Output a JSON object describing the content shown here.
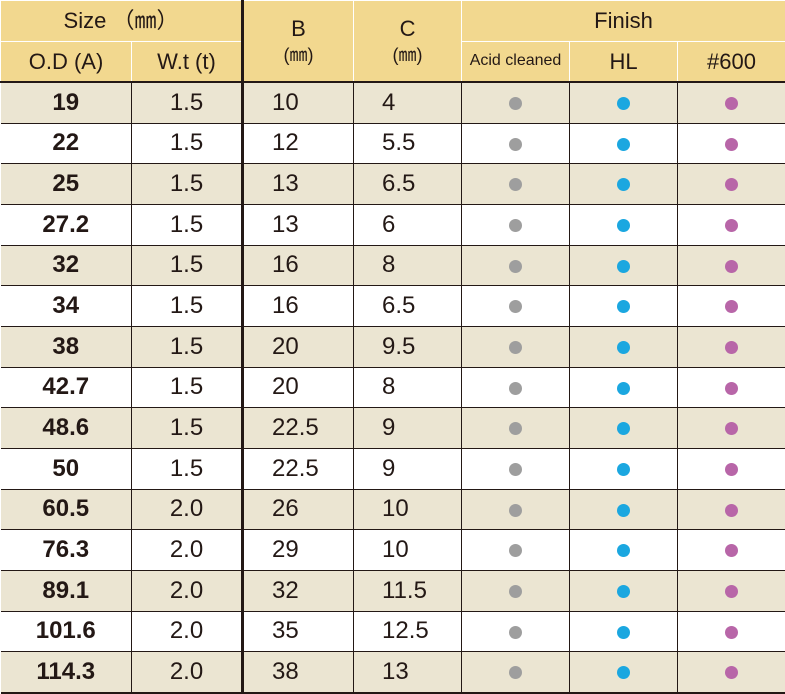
{
  "header": {
    "size_label": "Size （㎜）",
    "od_label": "O.D (A)",
    "wt_label": "W.t (t)",
    "b_label": "B",
    "b_unit": "(㎜)",
    "c_label": "C",
    "c_unit": "(㎜)",
    "finish_label": "Finish",
    "acid_label": "Acid cleaned",
    "hl_label": "HL",
    "no600_label": "#600"
  },
  "colors": {
    "header_bg": "#f2d88f",
    "row_shade": "#ebe5d2",
    "dot_acid": "#9e9e9e",
    "dot_hl": "#1ba7e0",
    "dot_600": "#b866a8"
  },
  "rows": [
    {
      "od": "19",
      "wt": "1.5",
      "b": "10",
      "c": "4"
    },
    {
      "od": "22",
      "wt": "1.5",
      "b": "12",
      "c": "5.5"
    },
    {
      "od": "25",
      "wt": "1.5",
      "b": "13",
      "c": "6.5"
    },
    {
      "od": "27.2",
      "wt": "1.5",
      "b": "13",
      "c": "6"
    },
    {
      "od": "32",
      "wt": "1.5",
      "b": "16",
      "c": "8"
    },
    {
      "od": "34",
      "wt": "1.5",
      "b": "16",
      "c": "6.5"
    },
    {
      "od": "38",
      "wt": "1.5",
      "b": "20",
      "c": "9.5"
    },
    {
      "od": "42.7",
      "wt": "1.5",
      "b": "20",
      "c": "8"
    },
    {
      "od": "48.6",
      "wt": "1.5",
      "b": "22.5",
      "c": "9"
    },
    {
      "od": "50",
      "wt": "1.5",
      "b": "22.5",
      "c": "9"
    },
    {
      "od": "60.5",
      "wt": "2.0",
      "b": "26",
      "c": "10"
    },
    {
      "od": "76.3",
      "wt": "2.0",
      "b": "29",
      "c": "10"
    },
    {
      "od": "89.1",
      "wt": "2.0",
      "b": "32",
      "c": "11.5"
    },
    {
      "od": "101.6",
      "wt": "2.0",
      "b": "35",
      "c": "12.5"
    },
    {
      "od": "114.3",
      "wt": "2.0",
      "b": "38",
      "c": "13"
    }
  ]
}
